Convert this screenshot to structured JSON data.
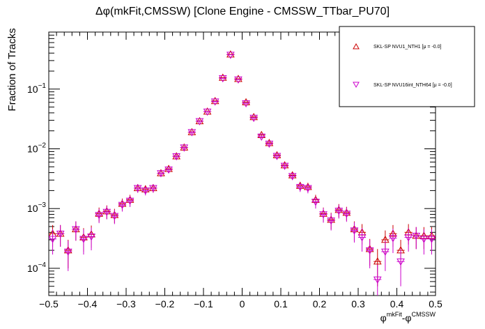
{
  "chart_data": {
    "type": "scatter",
    "title": "Δφ(mkFit,CMSSW) [Clone Engine - CMSSW_TTbar_PU70]",
    "ylabel": "Fraction of Tracks",
    "xlabel": {
      "base": "φ",
      "sup1": "mkFit",
      "mid": "-φ",
      "sup2": "CMSSW"
    },
    "x_ticks": [
      -0.5,
      -0.4,
      -0.3,
      -0.2,
      -0.1,
      0,
      0.1,
      0.2,
      0.3,
      0.4,
      0.5
    ],
    "x_tick_labels": [
      "−0.5",
      "−0.4",
      "−0.3",
      "−0.2",
      "−0.1",
      "0",
      "0.1",
      "0.2",
      "0.3",
      "0.4",
      "0.5"
    ],
    "xlim": [
      -0.5,
      0.5
    ],
    "y_scale": "log",
    "ylim": [
      3.5e-05,
      0.9
    ],
    "y_ticks": [
      {
        "value": 0.0001,
        "mant": "10",
        "exp": "−4"
      },
      {
        "value": 0.001,
        "mant": "10",
        "exp": "−3"
      },
      {
        "value": 0.01,
        "mant": "10",
        "exp": "−2"
      },
      {
        "value": 0.1,
        "mant": "10",
        "exp": "−1"
      }
    ],
    "legend_position": "top-right",
    "series": [
      {
        "name": "SKL-SP NVU1_NTH1 [μ = -0.0]",
        "marker": "triangle-up",
        "color": "#cc0000",
        "x": [
          -0.49,
          -0.47,
          -0.45,
          -0.43,
          -0.41,
          -0.39,
          -0.37,
          -0.35,
          -0.33,
          -0.31,
          -0.29,
          -0.27,
          -0.25,
          -0.23,
          -0.21,
          -0.19,
          -0.17,
          -0.15,
          -0.13,
          -0.11,
          -0.09,
          -0.07,
          -0.05,
          -0.03,
          -0.01,
          0.01,
          0.03,
          0.05,
          0.07,
          0.09,
          0.11,
          0.13,
          0.15,
          0.17,
          0.19,
          0.21,
          0.23,
          0.25,
          0.27,
          0.29,
          0.31,
          0.33,
          0.35,
          0.37,
          0.39,
          0.41,
          0.43,
          0.45,
          0.47,
          0.49
        ],
        "y": [
          0.00038,
          0.00038,
          0.0002,
          0.00045,
          0.00033,
          0.00037,
          0.00082,
          0.0009,
          0.00078,
          0.0012,
          0.0014,
          0.0022,
          0.0021,
          0.0022,
          0.0039,
          0.0046,
          0.0075,
          0.0105,
          0.019,
          0.029,
          0.042,
          0.063,
          0.155,
          0.38,
          0.148,
          0.06,
          0.034,
          0.017,
          0.0125,
          0.0078,
          0.0053,
          0.0036,
          0.0024,
          0.0023,
          0.0014,
          0.00082,
          0.00065,
          0.00095,
          0.00085,
          0.00045,
          0.0004,
          0.00021,
          0.00013,
          0.0003,
          0.00038,
          0.0002,
          0.0004,
          0.00035,
          0.00035,
          0.00035
        ],
        "y_err": [
          0.00015,
          0.00015,
          0.0001,
          0.00016,
          0.00014,
          0.00015,
          0.00022,
          0.00023,
          0.00021,
          0.00027,
          0.0003,
          0.00036,
          0.00035,
          0.00036,
          0.0005,
          0.00055,
          0.0007,
          0.0008,
          0.0011,
          0.0014,
          0.0017,
          0.002,
          0.0032,
          0.005,
          0.0031,
          0.002,
          0.0015,
          0.001,
          0.0009,
          0.0007,
          0.0006,
          0.0005,
          0.0004,
          0.0004,
          0.0003,
          0.00022,
          0.0002,
          0.00024,
          0.00022,
          0.00016,
          0.00015,
          0.0001,
          8e-05,
          0.00013,
          0.00015,
          0.0001,
          0.00015,
          0.00014,
          0.00014,
          0.00014
        ]
      },
      {
        "name": "SKL-SP NVU16int_NTH64 [μ = -0.0]",
        "marker": "triangle-down",
        "color": "#cc00cc",
        "x": [
          -0.49,
          -0.47,
          -0.45,
          -0.43,
          -0.41,
          -0.39,
          -0.37,
          -0.35,
          -0.33,
          -0.31,
          -0.29,
          -0.27,
          -0.25,
          -0.23,
          -0.21,
          -0.19,
          -0.17,
          -0.15,
          -0.13,
          -0.11,
          -0.09,
          -0.07,
          -0.05,
          -0.03,
          -0.01,
          0.01,
          0.03,
          0.05,
          0.07,
          0.09,
          0.11,
          0.13,
          0.15,
          0.17,
          0.19,
          0.21,
          0.23,
          0.25,
          0.27,
          0.29,
          0.31,
          0.33,
          0.35,
          0.37,
          0.39,
          0.41,
          0.43,
          0.45,
          0.47,
          0.49
        ],
        "y": [
          0.00031,
          0.00038,
          0.00019,
          0.00045,
          0.00031,
          0.00034,
          0.00078,
          0.00088,
          0.00075,
          0.00115,
          0.00135,
          0.0022,
          0.002,
          0.0022,
          0.0039,
          0.0045,
          0.0075,
          0.0105,
          0.019,
          0.029,
          0.042,
          0.062,
          0.152,
          0.375,
          0.145,
          0.058,
          0.033,
          0.016,
          0.0122,
          0.0076,
          0.0052,
          0.0035,
          0.0023,
          0.0022,
          0.0013,
          0.0008,
          0.00063,
          0.00092,
          0.00082,
          0.00043,
          0.00033,
          0.0002,
          6.5e-05,
          0.00019,
          0.00032,
          0.00013,
          0.00033,
          0.00035,
          0.00031,
          0.00031
        ],
        "y_err": [
          0.00014,
          0.00015,
          0.0001,
          0.00016,
          0.00014,
          0.00014,
          0.00021,
          0.00022,
          0.0002,
          0.00026,
          0.00029,
          0.00036,
          0.00034,
          0.00036,
          0.0005,
          0.00054,
          0.0007,
          0.0008,
          0.0011,
          0.0014,
          0.0017,
          0.002,
          0.0032,
          0.005,
          0.0031,
          0.002,
          0.0015,
          0.001,
          0.0009,
          0.0007,
          0.0006,
          0.0005,
          0.0004,
          0.0004,
          0.0003,
          0.00022,
          0.0002,
          0.00024,
          0.00022,
          0.00016,
          0.00014,
          0.0001,
          5e-05,
          0.0001,
          0.00014,
          8e-05,
          0.00014,
          0.00014,
          0.00014,
          0.00014
        ]
      }
    ]
  }
}
